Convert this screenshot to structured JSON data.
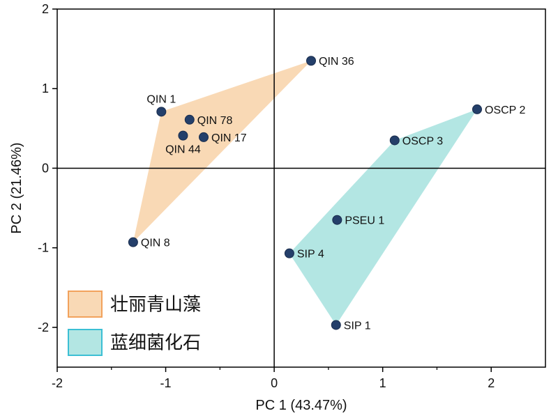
{
  "chart_data": {
    "type": "scatter",
    "xlabel": "PC 1 (43.47%)",
    "ylabel": "PC 2 (21.46%)",
    "xlim": [
      -2,
      2.5
    ],
    "ylim": [
      -2.5,
      2
    ],
    "xticks": [
      -2,
      -1,
      0,
      1,
      2
    ],
    "yticks": [
      -2,
      -1,
      0,
      1,
      2
    ],
    "xtick_labels": [
      "-2",
      "-1",
      "0",
      "1",
      "2"
    ],
    "ytick_labels": [
      "-2",
      "-1",
      "0",
      "1",
      "2"
    ],
    "origin_lines": true,
    "groups": [
      {
        "name": "壮丽青山藻",
        "fill": "#f9d9b5",
        "legend_border": "#f2a25c",
        "hull": [
          "QIN 36",
          "QIN 1",
          "QIN 8"
        ]
      },
      {
        "name": "蓝细菌化石",
        "fill": "#b3e6e3",
        "legend_border": "#3bbfd4",
        "hull": [
          "OSCP 2",
          "OSCP 3",
          "SIP 4",
          "SIP 1"
        ]
      }
    ],
    "points": [
      {
        "label": "QIN 36",
        "x": 0.34,
        "y": 1.35,
        "group": 0,
        "label_side": "right"
      },
      {
        "label": "QIN 1",
        "x": -1.04,
        "y": 0.71,
        "group": 0,
        "label_side": "above"
      },
      {
        "label": "QIN 78",
        "x": -0.78,
        "y": 0.61,
        "group": 0,
        "label_side": "right"
      },
      {
        "label": "QIN 44",
        "x": -0.84,
        "y": 0.41,
        "group": 0,
        "label_side": "below"
      },
      {
        "label": "QIN 17",
        "x": -0.65,
        "y": 0.39,
        "group": 0,
        "label_side": "right"
      },
      {
        "label": "QIN 8",
        "x": -1.3,
        "y": -0.93,
        "group": 0,
        "label_side": "right"
      },
      {
        "label": "OSCP 2",
        "x": 1.87,
        "y": 0.74,
        "group": 1,
        "label_side": "right"
      },
      {
        "label": "OSCP 3",
        "x": 1.11,
        "y": 0.35,
        "group": 1,
        "label_side": "right"
      },
      {
        "label": "PSEU 1",
        "x": 0.58,
        "y": -0.65,
        "group": 1,
        "label_side": "right"
      },
      {
        "label": "SIP 4",
        "x": 0.14,
        "y": -1.07,
        "group": 1,
        "label_side": "right"
      },
      {
        "label": "SIP 1",
        "x": 0.57,
        "y": -1.97,
        "group": 1,
        "label_side": "right"
      }
    ],
    "point_color": "#243f6a",
    "legend_position": "bottom-left"
  }
}
